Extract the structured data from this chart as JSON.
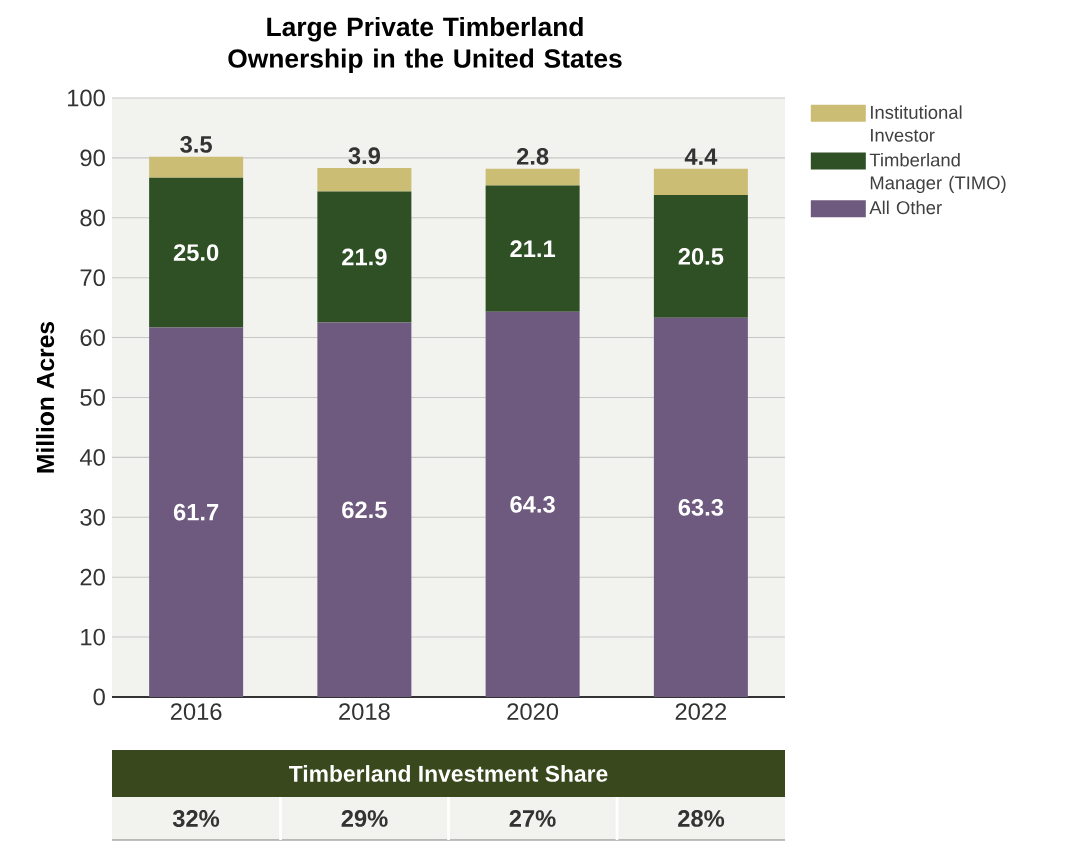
{
  "chart_data": {
    "type": "bar",
    "title": "Large Private Timberland Ownership in the United States",
    "ylabel": "Million Acres",
    "categories": [
      "2016",
      "2018",
      "2020",
      "2022"
    ],
    "stacked": true,
    "series": [
      {
        "name": "All Other",
        "color": "#6e5a7e",
        "values": [
          61.7,
          62.5,
          64.3,
          63.3
        ],
        "value_labels": [
          "61.7",
          "62.5",
          "64.3",
          "63.3"
        ]
      },
      {
        "name": "Timberland Manager (TIMO)",
        "color": "#2f4f25",
        "values": [
          25.0,
          21.9,
          21.1,
          20.5
        ],
        "value_labels": [
          "25.0",
          "21.9",
          "21.1",
          "20.5"
        ]
      },
      {
        "name": "Institutional Investor",
        "color": "#cbbd73",
        "values": [
          3.5,
          3.9,
          2.8,
          4.4
        ],
        "value_labels": [
          "3.5",
          "3.9",
          "2.8",
          "4.4"
        ]
      }
    ],
    "ylim": [
      0,
      100
    ],
    "yticks": [
      0,
      10,
      20,
      30,
      40,
      50,
      60,
      70,
      80,
      90,
      100
    ],
    "grid": "y",
    "legend": "right",
    "annotations": [
      "Timberland Investment Share",
      "32%",
      "29%",
      "27%",
      "28%"
    ]
  }
}
